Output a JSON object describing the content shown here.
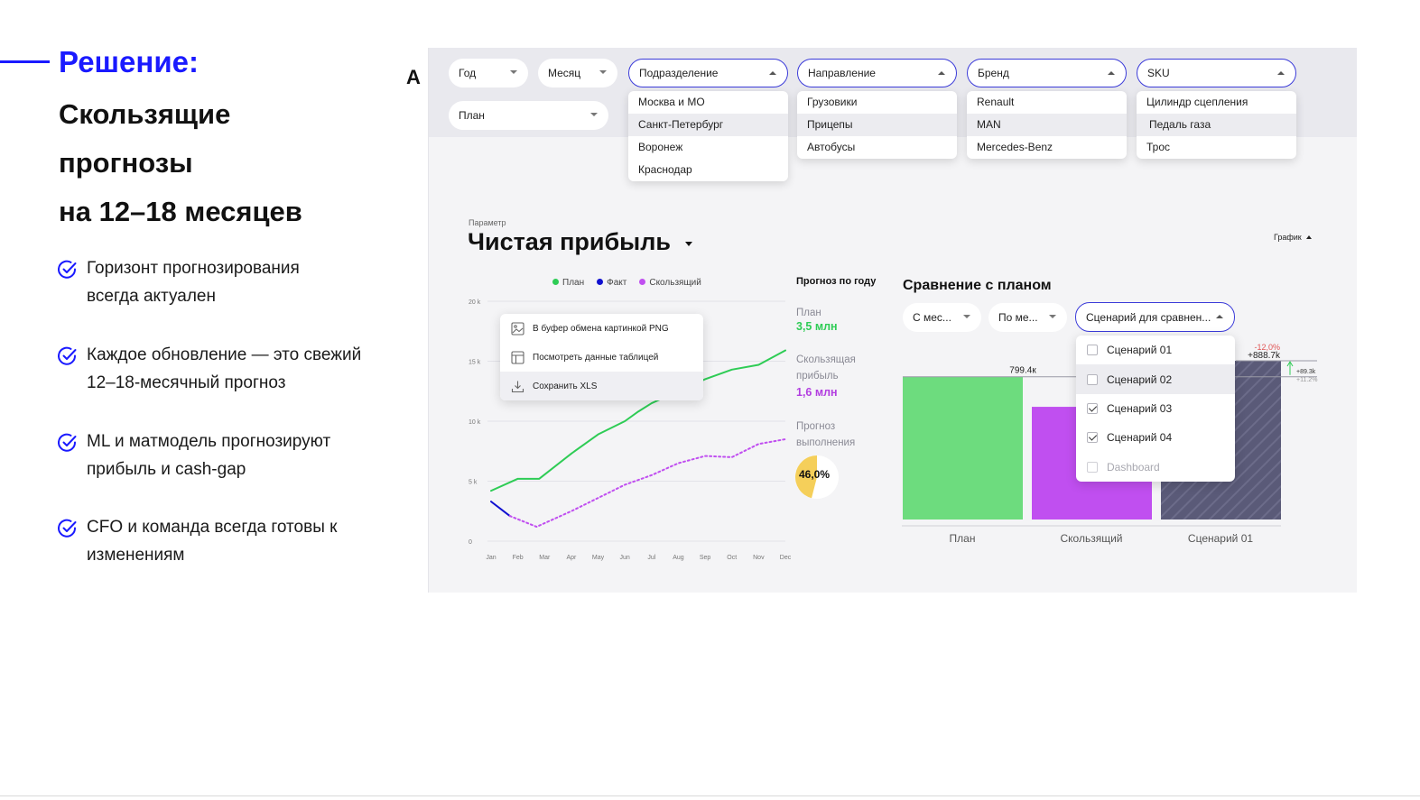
{
  "slide": {
    "label": "Решение:",
    "title_lines": [
      "Скользящие",
      "прогнозы",
      "на 12–18 месяцев"
    ],
    "bullets": [
      {
        "line1": "Горизонт прогнозирования",
        "line2": "всегда актуален"
      },
      {
        "line1": "Каждое обновление — это свежий",
        "line2": "12–18-месячный прогноз"
      },
      {
        "line1": "ML и матмодель прогнозируют",
        "line2": "прибыль и cash-gap"
      },
      {
        "line1": "CFO и команда всегда готовы к",
        "line2": "изменениям"
      }
    ],
    "accent_color": "#1a1aff",
    "check_icon": "check-circle-icon"
  },
  "app": {
    "logo": "A",
    "filters": {
      "year": "Год",
      "month": "Месяц",
      "plan": "План",
      "division": {
        "label": "Подразделение",
        "options": [
          "Москва и МО",
          "Санкт-Петербург",
          "Воронеж",
          "Краснодар"
        ],
        "highlighted": "Санкт-Петербург"
      },
      "direction": {
        "label": "Направление",
        "options": [
          "Грузовики",
          "Прицепы",
          "Автобусы"
        ],
        "highlighted": "Прицепы"
      },
      "brand": {
        "label": "Бренд",
        "options": [
          "Renault",
          "MAN",
          "Mercedes-Benz"
        ],
        "highlighted": "MAN"
      },
      "sku": {
        "label": "SKU",
        "options": [
          "Цилиндр сцепления",
          "Педаль газа",
          "Трос"
        ],
        "highlighted": "Педаль газа"
      }
    },
    "parameter_caption": "Параметр",
    "parameter_title": "Чистая прибыль",
    "graph_toggle": "График",
    "legend": [
      {
        "name": "План",
        "color": "#2ecc55"
      },
      {
        "name": "Факт",
        "color": "#1010d0"
      },
      {
        "name": "Скользящий",
        "color": "#c04ff0"
      }
    ],
    "context_menu": {
      "copy_png": "В буфер обмена картинкой PNG",
      "view_table": "Посмотреть данные таблицей",
      "save_xls": "Сохранить XLS"
    },
    "forecast": {
      "title": "Прогноз по году",
      "plan_label": "План",
      "plan_value": "3,5 млн",
      "rolling_label_1": "Скользящая",
      "rolling_label_2": "прибыль",
      "rolling_value": "1,6 млн",
      "completion_label_1": "Прогноз",
      "completion_label_2": "выполнения",
      "completion_value": "46,0%",
      "completion_fraction": 0.46,
      "plan_color": "#2ecc55",
      "rolling_color": "#b23ee0",
      "donut_color": "#f5cf5a"
    },
    "comparison": {
      "title": "Сравнение с планом",
      "from_month": "С мес...",
      "to_month": "По ме...",
      "scenario_select": "Сценарий для сравнен...",
      "scenarios": [
        {
          "label": "Сценарий 01",
          "checked": false,
          "highlighted": false,
          "disabled": false
        },
        {
          "label": "Сценарий 02",
          "checked": false,
          "highlighted": true,
          "disabled": false
        },
        {
          "label": "Сценарий 03",
          "checked": true,
          "highlighted": false,
          "disabled": false
        },
        {
          "label": "Сценарий 04",
          "checked": true,
          "highlighted": false,
          "disabled": false
        },
        {
          "label": "Dashboard",
          "checked": false,
          "highlighted": false,
          "disabled": true
        }
      ],
      "plan_bar_label": "799.4к",
      "scenario_bar_label": "+888.7k",
      "delta_pct": "-12,0%",
      "side_delta_1": "+89.3k",
      "side_delta_2": "+11.2%"
    }
  },
  "chart_data": [
    {
      "type": "line",
      "x": [
        "Jan",
        "Feb",
        "Mar",
        "Apr",
        "May",
        "Jun",
        "Jul",
        "Aug",
        "Sep",
        "Oct",
        "Nov",
        "Dec"
      ],
      "ylim": [
        0,
        20000
      ],
      "yticks": [
        "0",
        "5 k",
        "10 k",
        "15 k",
        "20 k"
      ],
      "ytick_values": [
        0,
        5000,
        10000,
        15000,
        20000
      ],
      "series": [
        {
          "name": "План",
          "color": "#2ecc55",
          "style": "solid",
          "x": [
            0,
            1,
            1.8,
            3,
            4,
            5,
            5.5,
            6,
            7,
            8,
            9,
            10,
            11
          ],
          "values": [
            4200,
            5200,
            5200,
            7300,
            8900,
            10000,
            10800,
            11500,
            12500,
            13500,
            14300,
            14700,
            15900
          ]
        },
        {
          "name": "Факт",
          "color": "#1010d0",
          "style": "solid",
          "x": [
            0,
            0.7
          ],
          "values": [
            3300,
            2100
          ]
        },
        {
          "name": "Скользящий",
          "color": "#c04ff0",
          "style": "dotted",
          "x": [
            0.7,
            1.7,
            2.4,
            3,
            4,
            5,
            6,
            7,
            8,
            9,
            10,
            11
          ],
          "values": [
            2100,
            1200,
            1900,
            2500,
            3600,
            4700,
            5500,
            6500,
            7100,
            7000,
            8100,
            8500
          ]
        }
      ]
    },
    {
      "type": "bar",
      "categories": [
        "План",
        "Скользящий",
        "Сценарий 01"
      ],
      "values": [
        799.4,
        631,
        888.7
      ],
      "colors": [
        "#6ddc7e",
        "#c04ff0",
        "#5a5a78"
      ],
      "data_labels": [
        "799.4к",
        "",
        "+888.7k"
      ],
      "ylim": [
        0,
        1000
      ]
    }
  ]
}
